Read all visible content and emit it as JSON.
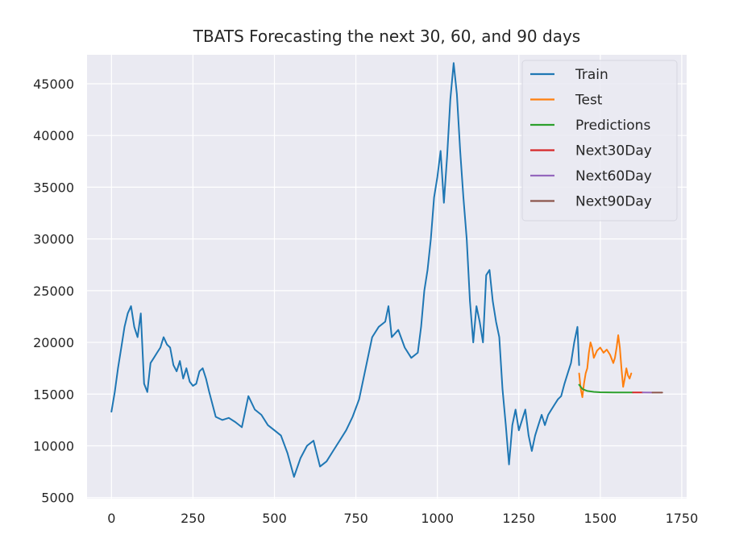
{
  "chart_data": {
    "type": "line",
    "title": "TBATS Forecasting the next 30, 60, and 90 days",
    "xlabel": "",
    "ylabel": "",
    "xlim": [
      -75,
      1765
    ],
    "ylim": [
      4900,
      47800
    ],
    "xticks": [
      0,
      250,
      500,
      750,
      1000,
      1250,
      1500,
      1750
    ],
    "yticks": [
      5000,
      10000,
      15000,
      20000,
      25000,
      30000,
      35000,
      40000,
      45000
    ],
    "grid": true,
    "legend_position": "top-right",
    "series": [
      {
        "name": "Train",
        "color": "#1f77b4",
        "x": [
          0,
          10,
          20,
          30,
          40,
          50,
          60,
          70,
          80,
          90,
          100,
          110,
          120,
          130,
          140,
          150,
          160,
          170,
          180,
          190,
          200,
          210,
          220,
          230,
          240,
          250,
          260,
          270,
          280,
          290,
          300,
          320,
          340,
          360,
          380,
          400,
          420,
          440,
          460,
          480,
          500,
          520,
          540,
          560,
          580,
          600,
          620,
          640,
          660,
          680,
          700,
          720,
          740,
          760,
          780,
          800,
          820,
          840,
          850,
          860,
          880,
          900,
          920,
          940,
          950,
          960,
          970,
          980,
          990,
          1000,
          1010,
          1020,
          1030,
          1040,
          1050,
          1060,
          1070,
          1080,
          1090,
          1100,
          1110,
          1120,
          1130,
          1140,
          1150,
          1160,
          1170,
          1180,
          1190,
          1200,
          1210,
          1220,
          1230,
          1240,
          1250,
          1260,
          1270,
          1280,
          1290,
          1300,
          1310,
          1320,
          1330,
          1340,
          1350,
          1360,
          1370,
          1380,
          1390,
          1400,
          1410,
          1420,
          1430,
          1435
        ],
        "y": [
          13300,
          15200,
          17500,
          19500,
          21500,
          22800,
          23500,
          21500,
          20500,
          22800,
          16000,
          15200,
          18000,
          18500,
          19000,
          19500,
          20500,
          19800,
          19500,
          17800,
          17200,
          18200,
          16500,
          17500,
          16200,
          15800,
          16000,
          17200,
          17500,
          16500,
          15200,
          12800,
          12500,
          12700,
          12300,
          11800,
          14800,
          13500,
          13000,
          12000,
          11500,
          11000,
          9300,
          7000,
          8800,
          10000,
          10500,
          8000,
          8500,
          9500,
          10500,
          11500,
          12800,
          14500,
          17500,
          20500,
          21500,
          22000,
          23500,
          20500,
          21200,
          19500,
          18500,
          19000,
          21500,
          25000,
          27000,
          30000,
          34000,
          36000,
          38500,
          33500,
          38000,
          43500,
          47000,
          44000,
          38500,
          34000,
          30000,
          24000,
          20000,
          23500,
          22000,
          20000,
          26500,
          27000,
          24000,
          22000,
          20500,
          15500,
          12000,
          8200,
          12000,
          13500,
          11500,
          12500,
          13500,
          11000,
          9500,
          11000,
          12000,
          13000,
          12000,
          13000,
          13500,
          14000,
          14500,
          14800,
          16000,
          17000,
          18000,
          20000,
          21500,
          17800
        ]
      },
      {
        "name": "Test",
        "color": "#ff7f0e",
        "x": [
          1435,
          1440,
          1445,
          1450,
          1455,
          1460,
          1465,
          1470,
          1475,
          1480,
          1490,
          1500,
          1510,
          1520,
          1530,
          1540,
          1545,
          1550,
          1555,
          1560,
          1565,
          1570,
          1575,
          1580,
          1585,
          1590,
          1595
        ],
        "y": [
          17000,
          15500,
          14700,
          16000,
          17000,
          17500,
          19000,
          20000,
          19500,
          18500,
          19200,
          19500,
          19000,
          19300,
          18800,
          18000,
          18500,
          19500,
          20700,
          19500,
          17500,
          15700,
          16500,
          17500,
          16800,
          16500,
          17000
        ]
      },
      {
        "name": "Predictions",
        "color": "#2ca02c",
        "x": [
          1435,
          1445,
          1460,
          1480,
          1500,
          1520,
          1540,
          1560,
          1580,
          1600
        ],
        "y": [
          15900,
          15500,
          15300,
          15220,
          15180,
          15170,
          15165,
          15160,
          15158,
          15155
        ]
      },
      {
        "name": "Next30Day",
        "color": "#d62728",
        "x": [
          1600,
          1630
        ],
        "y": [
          15155,
          15152
        ]
      },
      {
        "name": "Next60Day",
        "color": "#9467bd",
        "x": [
          1630,
          1660
        ],
        "y": [
          15152,
          15150
        ]
      },
      {
        "name": "Next90Day",
        "color": "#8c564b",
        "x": [
          1660,
          1690
        ],
        "y": [
          15150,
          15150
        ]
      }
    ]
  }
}
